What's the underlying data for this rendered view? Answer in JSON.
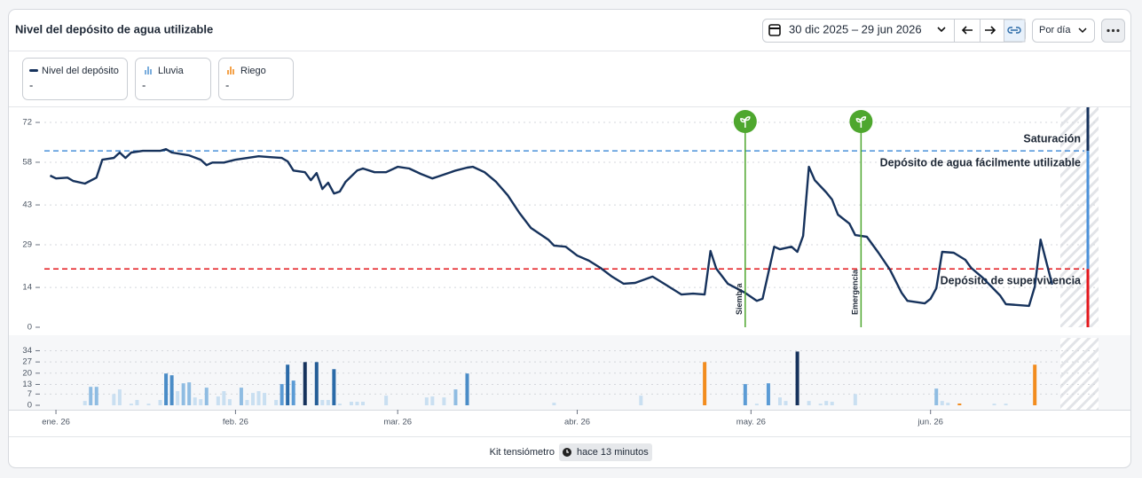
{
  "header": {
    "title": "Nivel del depósito de agua utilizable",
    "date_range": "30 dic 2025 – 29 jun 2026",
    "granularity": "Por día"
  },
  "current_values": [
    "-",
    "-",
    "-"
  ],
  "footer": {
    "source": "Kit tensiómetro",
    "updated": "hace 13 minutos"
  },
  "chart_data": [
    {
      "type": "line",
      "xlim": [
        -2,
        180
      ],
      "xticks": [
        {
          "value": 0,
          "label": "ene. 26"
        },
        {
          "value": 31,
          "label": "feb. 26"
        },
        {
          "value": 59,
          "label": "mar. 26"
        },
        {
          "value": 90,
          "label": "abr. 26"
        },
        {
          "value": 120,
          "label": "may. 26"
        },
        {
          "value": 151,
          "label": "jun. 26"
        }
      ],
      "ylim": [
        0,
        77
      ],
      "yticks": [
        0,
        14,
        29,
        43,
        58,
        72
      ],
      "grid": true,
      "series": [
        {
          "name": "Nivel del depósito",
          "color": "#16325c",
          "x": [
            -1,
            0,
            2,
            3,
            5,
            7,
            8,
            10,
            11,
            12,
            13,
            15,
            18,
            19,
            20,
            23,
            25,
            26,
            27,
            29,
            31,
            35,
            37,
            39,
            40,
            41,
            43,
            44,
            45,
            46,
            47,
            48,
            49,
            50,
            52,
            53,
            55,
            57,
            59,
            61,
            63,
            65,
            66,
            69,
            71,
            72,
            74,
            76,
            78,
            80,
            82,
            85,
            86,
            88,
            90,
            92,
            94,
            96,
            98,
            100,
            103,
            105,
            108,
            110,
            112,
            113,
            114,
            116,
            119,
            121,
            122,
            124,
            125,
            127,
            128,
            129,
            130,
            131,
            133,
            134,
            135,
            137,
            138,
            140,
            142,
            144,
            146,
            147,
            150,
            151,
            152,
            153,
            155,
            157,
            158,
            160,
            163,
            164,
            168,
            169,
            170,
            172
          ],
          "values": [
            53.3,
            52.3,
            52.6,
            51.4,
            50.5,
            52.6,
            58.9,
            59.5,
            61.4,
            59.5,
            61.4,
            62,
            62,
            62.6,
            61.4,
            60.4,
            58.9,
            57,
            57.9,
            57.9,
            58.9,
            60.1,
            59.8,
            59.5,
            58.3,
            55.1,
            54.5,
            51.7,
            54.2,
            48.6,
            50.8,
            47,
            47.7,
            51.1,
            55.1,
            55.8,
            54.5,
            54.5,
            56.4,
            55.8,
            53.9,
            52.3,
            53,
            55.1,
            56.1,
            56.4,
            54.5,
            51.1,
            46.4,
            40.2,
            34.9,
            30.8,
            28.7,
            28.3,
            25.2,
            23.4,
            20.9,
            17.8,
            15.3,
            15.6,
            17.8,
            15.3,
            11.5,
            11.8,
            11.5,
            26.8,
            20.6,
            15.3,
            12.1,
            9.3,
            10,
            28.3,
            27.4,
            28.3,
            26.5,
            32.1,
            56.4,
            51.7,
            47.4,
            44.9,
            39.6,
            36.4,
            32.4,
            31.8,
            26.2,
            20.2,
            12.1,
            9.3,
            8.4,
            10,
            13.7,
            26.5,
            26.2,
            23.7,
            20.9,
            17.4,
            11.2,
            8.1,
            7.5,
            14.3,
            30.8,
            15
          ]
        }
      ],
      "upper_zone": {
        "label": "Saturación",
        "color": "#16325c"
      },
      "reference_lines": [
        {
          "label": "Depósito de agua fácilmente utilizable",
          "value": 62,
          "color": "#4a90d9"
        },
        {
          "label": "Depósito de supervivencia",
          "value": 20.5,
          "color": "#e3161b"
        }
      ],
      "events": [
        {
          "label": "Siembra",
          "x": 119,
          "color": "#4ea72e"
        },
        {
          "label": "Emergencia",
          "x": 139,
          "color": "#4ea72e"
        }
      ]
    },
    {
      "type": "bar",
      "xlim": [
        -2,
        180
      ],
      "ylim": [
        0,
        42
      ],
      "yticks": [
        0,
        7,
        13,
        20,
        27,
        34
      ],
      "grid": true,
      "series": [
        {
          "name": "Lluvia",
          "color": "#5b9bd5",
          "x": [
            5,
            6,
            7,
            10,
            11,
            13,
            14,
            16,
            18,
            19,
            20,
            21,
            22,
            23,
            24,
            25,
            26,
            28,
            29,
            30,
            32,
            33,
            34,
            35,
            36,
            38,
            39,
            40,
            41,
            43,
            45,
            46,
            47,
            48,
            49,
            51,
            52,
            53,
            57,
            64,
            65,
            67,
            69,
            71,
            86,
            101,
            119,
            121,
            123,
            125,
            126,
            128,
            130,
            132,
            133,
            134,
            138,
            152,
            153,
            154,
            162,
            164
          ],
          "values": [
            2.7,
            11.5,
            11.5,
            7,
            9.9,
            1,
            3.3,
            1,
            3.3,
            19.8,
            18.7,
            8.8,
            13.7,
            14.3,
            4.9,
            3.8,
            11,
            5.5,
            8.8,
            3.8,
            11,
            3.3,
            7.7,
            8.8,
            7.7,
            3.3,
            13.2,
            25.3,
            15.4,
            26.9,
            26.9,
            3.3,
            3.3,
            22.5,
            1,
            2.2,
            2.2,
            2.2,
            6,
            4.9,
            5.5,
            4.9,
            9.9,
            19.8,
            1.6,
            6,
            13.2,
            1,
            13.7,
            4.9,
            2.7,
            33.5,
            2.7,
            1,
            2.7,
            2.2,
            7,
            10.4,
            2.7,
            1.6,
            1,
            1
          ],
          "colors": [
            "#c9dff1",
            "#8fbce2",
            "#8fbce2",
            "#c9dff1",
            "#c9dff1",
            "#c9dff1",
            "#c9dff1",
            "#c9dff1",
            "#c9dff1",
            "#4a8cc7",
            "#4a8cc7",
            "#c9dff1",
            "#8fbce2",
            "#8fbce2",
            "#c9dff1",
            "#c9dff1",
            "#8fbce2",
            "#c9dff1",
            "#c9dff1",
            "#c9dff1",
            "#8fbce2",
            "#c9dff1",
            "#c9dff1",
            "#c9dff1",
            "#c9dff1",
            "#c9dff1",
            "#5b9bd5",
            "#2a6aa8",
            "#5b9bd5",
            "#16325c",
            "#245d96",
            "#c9dff1",
            "#c9dff1",
            "#2a6aa8",
            "#c9dff1",
            "#c9dff1",
            "#c9dff1",
            "#c9dff1",
            "#c9dff1",
            "#c9dff1",
            "#c9dff1",
            "#c9dff1",
            "#8fbce2",
            "#4a8cc7",
            "#c9dff1",
            "#c9dff1",
            "#5b9bd5",
            "#c9dff1",
            "#5b9bd5",
            "#c9dff1",
            "#c9dff1",
            "#16325c",
            "#c9dff1",
            "#c9dff1",
            "#c9dff1",
            "#c9dff1",
            "#c9dff1",
            "#8fbce2",
            "#c9dff1",
            "#c9dff1",
            "#c9dff1",
            "#c9dff1"
          ]
        },
        {
          "name": "Riego",
          "color": "#f28c1e",
          "x": [
            112,
            156,
            169
          ],
          "values": [
            26.9,
            1.1,
            25.3
          ]
        }
      ]
    }
  ]
}
